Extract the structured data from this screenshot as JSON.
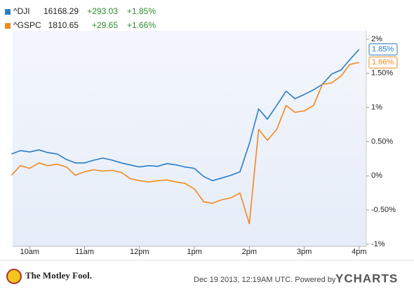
{
  "chart_data": {
    "type": "line",
    "x": [
      9.67,
      9.83,
      10,
      10.17,
      10.33,
      10.5,
      10.67,
      10.83,
      11,
      11.17,
      11.33,
      11.5,
      11.67,
      11.83,
      12,
      12.17,
      12.33,
      12.5,
      12.67,
      12.83,
      13,
      13.17,
      13.33,
      13.5,
      13.67,
      13.83,
      14,
      14.17,
      14.33,
      14.5,
      14.67,
      14.83,
      15,
      15.17,
      15.33,
      15.5,
      15.67,
      15.83,
      16
    ],
    "series": [
      {
        "name": "^DJI",
        "color": "#2b7cc7",
        "quote": {
          "price": 16168.29,
          "change": "+293.03",
          "change_pct": "+1.85%"
        },
        "end_label": {
          "value": 1.85,
          "label": "1.85%"
        },
        "values": [
          0.32,
          0.37,
          0.35,
          0.38,
          0.34,
          0.32,
          0.24,
          0.19,
          0.19,
          0.23,
          0.26,
          0.23,
          0.19,
          0.16,
          0.13,
          0.15,
          0.14,
          0.18,
          0.16,
          0.13,
          0.11,
          -0.01,
          -0.07,
          -0.03,
          0.01,
          0.06,
          0.47,
          0.98,
          0.83,
          1.03,
          1.24,
          1.13,
          1.19,
          1.26,
          1.34,
          1.49,
          1.55,
          1.7,
          1.85
        ]
      },
      {
        "name": "^GSPC",
        "color": "#f0891f",
        "quote": {
          "price": 1810.65,
          "change": "+29.65",
          "change_pct": "+1.66%"
        },
        "end_label": {
          "value": 1.66,
          "label": "1.66%"
        },
        "values": [
          0.01,
          0.15,
          0.11,
          0.19,
          0.15,
          0.17,
          0.13,
          0.01,
          0.06,
          0.09,
          0.07,
          0.08,
          0.05,
          -0.04,
          -0.07,
          -0.09,
          -0.07,
          -0.06,
          -0.09,
          -0.11,
          -0.19,
          -0.38,
          -0.4,
          -0.35,
          -0.32,
          -0.25,
          -0.7,
          0.68,
          0.52,
          0.68,
          1.03,
          0.93,
          0.95,
          1.03,
          1.34,
          1.36,
          1.46,
          1.63,
          1.66
        ]
      }
    ],
    "xlim": [
      9.69,
      16.13
    ],
    "xticks": [
      {
        "value": 10,
        "label": "10am"
      },
      {
        "value": 11,
        "label": "11am"
      },
      {
        "value": 12,
        "label": "12pm"
      },
      {
        "value": 13,
        "label": "1pm"
      },
      {
        "value": 14,
        "label": "2pm"
      },
      {
        "value": 15,
        "label": "3pm"
      },
      {
        "value": 16,
        "label": "4pm"
      }
    ],
    "ylim": [
      -1,
      2
    ],
    "yticks": [
      {
        "value": 2,
        "label": "2%"
      },
      {
        "value": 1.5,
        "label": "1.50%"
      },
      {
        "value": 1,
        "label": "1%"
      },
      {
        "value": 0.5,
        "label": "0.50%"
      },
      {
        "value": 0,
        "label": "0%"
      },
      {
        "value": -0.5,
        "label": "-0.50%"
      },
      {
        "value": -1,
        "label": "-1%"
      }
    ],
    "grid": false
  },
  "footer": {
    "logo": "The Motley Fool.",
    "timestamp": "Dec 19 2013, 12:19AM UTC. Powered by",
    "brand": "YCHARTS"
  }
}
